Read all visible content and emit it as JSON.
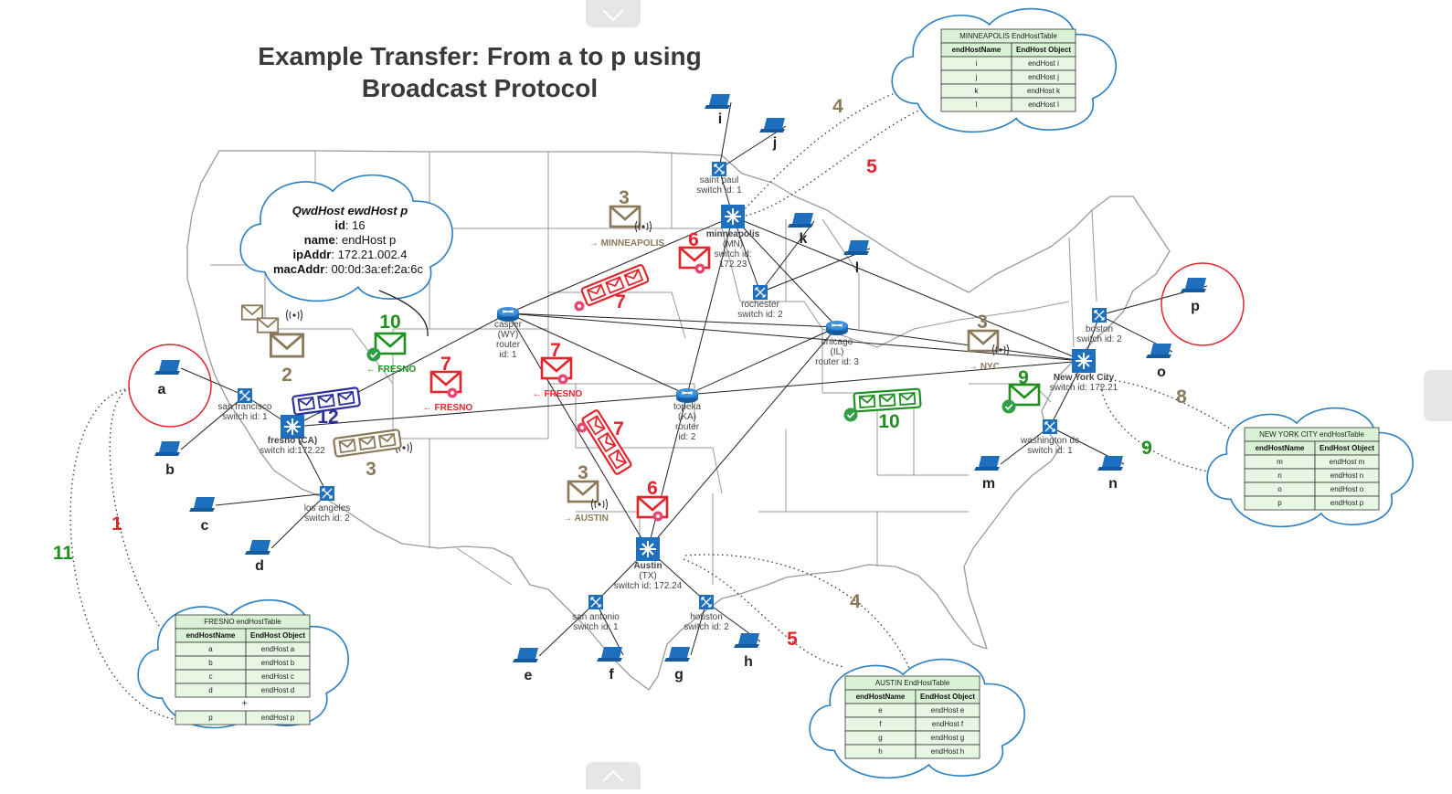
{
  "title": "Example Transfer: From a to p using Broadcast Protocol",
  "colors": {
    "red": "#e3242b",
    "green": "#1f8f1f",
    "brown": "#8b7a5a",
    "navy": "#2b2f9a",
    "blue": "#1f6fbf",
    "map_line": "#9a9a9a",
    "cloud": "#2a7fc1"
  },
  "info_cloud": {
    "heading": "QwdHost ewdHost p",
    "rows": [
      {
        "k": "id",
        "v": "16"
      },
      {
        "k": "name",
        "v": "endHost p"
      },
      {
        "k": "ipAddr",
        "v": "172.21.002.4"
      },
      {
        "k": "macAddr",
        "v": "00:0d:3a:ef:2a:6c"
      }
    ]
  },
  "devices": [
    {
      "id": "saint-paul",
      "kind": "switch",
      "lines": [
        "saint paul",
        "switch id: 1"
      ]
    },
    {
      "id": "minneapolis",
      "kind": "hub",
      "lines": [
        "minneapolis",
        "(MN)",
        "switch id:",
        "172.23"
      ]
    },
    {
      "id": "rochester",
      "kind": "switch",
      "lines": [
        "rochester",
        "switch id: 2"
      ]
    },
    {
      "id": "casper",
      "kind": "router",
      "lines": [
        "casper",
        "(WY)",
        "router",
        "id: 1"
      ]
    },
    {
      "id": "chicago",
      "kind": "router",
      "lines": [
        "chicago",
        "(IL)",
        "router id: 3"
      ]
    },
    {
      "id": "topeka",
      "kind": "router",
      "lines": [
        "topeka",
        "(KA)",
        "router",
        "id: 2"
      ]
    },
    {
      "id": "san-francisco",
      "kind": "switch",
      "lines": [
        "san francisco",
        "switch id: 1"
      ]
    },
    {
      "id": "fresno",
      "kind": "hub",
      "lines": [
        "fresno (CA)",
        "switch id:172.22"
      ]
    },
    {
      "id": "los-angeles",
      "kind": "switch",
      "lines": [
        "los angeles",
        "switch id: 2"
      ]
    },
    {
      "id": "austin",
      "kind": "hub",
      "lines": [
        "Austin",
        "(TX)",
        "switch id: 172.24"
      ]
    },
    {
      "id": "san-antonio",
      "kind": "switch",
      "lines": [
        "san antonio",
        "switch id: 1"
      ]
    },
    {
      "id": "houston",
      "kind": "switch",
      "lines": [
        "houston",
        "switch id: 2"
      ]
    },
    {
      "id": "boston",
      "kind": "switch",
      "lines": [
        "boston",
        "switch id: 2"
      ]
    },
    {
      "id": "new-york-city",
      "kind": "hub",
      "lines": [
        "New York City",
        "switch id: 172.21"
      ]
    },
    {
      "id": "washington-dc",
      "kind": "switch",
      "lines": [
        "washington dc",
        "switch id: 1"
      ]
    }
  ],
  "hosts": [
    "a",
    "b",
    "c",
    "d",
    "e",
    "f",
    "g",
    "h",
    "i",
    "j",
    "k",
    "l",
    "m",
    "n",
    "o",
    "p"
  ],
  "steps": [
    {
      "n": "1",
      "color": "red"
    },
    {
      "n": "2",
      "color": "brown"
    },
    {
      "n": "3",
      "color": "brown"
    },
    {
      "n": "3",
      "color": "brown"
    },
    {
      "n": "3",
      "color": "brown"
    },
    {
      "n": "3",
      "color": "brown"
    },
    {
      "n": "4",
      "color": "brown"
    },
    {
      "n": "4",
      "color": "brown"
    },
    {
      "n": "5",
      "color": "red"
    },
    {
      "n": "5",
      "color": "red"
    },
    {
      "n": "6",
      "color": "red"
    },
    {
      "n": "6",
      "color": "red"
    },
    {
      "n": "7",
      "color": "red"
    },
    {
      "n": "7",
      "color": "red"
    },
    {
      "n": "7",
      "color": "red"
    },
    {
      "n": "7",
      "color": "red"
    },
    {
      "n": "8",
      "color": "brown"
    },
    {
      "n": "9",
      "color": "green"
    },
    {
      "n": "9",
      "color": "green"
    },
    {
      "n": "10",
      "color": "green"
    },
    {
      "n": "10",
      "color": "green"
    },
    {
      "n": "11",
      "color": "green"
    },
    {
      "n": "12",
      "color": "navy"
    }
  ],
  "direction_labels": [
    {
      "text": "→ MINNEAPOLIS",
      "color": "brown"
    },
    {
      "text": "← FRESNO",
      "color": "green"
    },
    {
      "text": "← FRESNO",
      "color": "red"
    },
    {
      "text": "← FRESNO",
      "color": "red"
    },
    {
      "text": "→ NYC",
      "color": "brown"
    },
    {
      "text": "→ AUSTIN",
      "color": "brown"
    }
  ],
  "tables": [
    {
      "id": "minneapolis",
      "title": "MINNEAPOLIS EndHostTable",
      "headers": [
        "endHostName",
        "EndHost Object"
      ],
      "rows": [
        [
          "i",
          "endHost i"
        ],
        [
          "j",
          "endHost j"
        ],
        [
          "k",
          "endHost k"
        ],
        [
          "l",
          "endHost l"
        ]
      ],
      "extra": null
    },
    {
      "id": "new-york",
      "title": "NEW YORK CITY endHostTable",
      "headers": [
        "endHostName",
        "EndHost Object"
      ],
      "rows": [
        [
          "m",
          "endHost m"
        ],
        [
          "n",
          "endHost n"
        ],
        [
          "o",
          "endHost o"
        ],
        [
          "p",
          "endHost p"
        ]
      ],
      "extra": null
    },
    {
      "id": "fresno",
      "title": "FRESNO endHostTable",
      "headers": [
        "endHostName",
        "EndHost Object"
      ],
      "rows": [
        [
          "a",
          "endHost a"
        ],
        [
          "b",
          "endHost b"
        ],
        [
          "c",
          "endHost c"
        ],
        [
          "d",
          "endHost d"
        ]
      ],
      "extra": {
        "mark": "+",
        "row": [
          "p",
          "endHost p"
        ]
      }
    },
    {
      "id": "austin",
      "title": "AUSTIN EndHostTable",
      "headers": [
        "endHostName",
        "EndHost Object"
      ],
      "rows": [
        [
          "e",
          "endHost e"
        ],
        [
          "f",
          "endHost f"
        ],
        [
          "g",
          "endHost g"
        ],
        [
          "h",
          "endHost h"
        ]
      ],
      "extra": null
    }
  ]
}
